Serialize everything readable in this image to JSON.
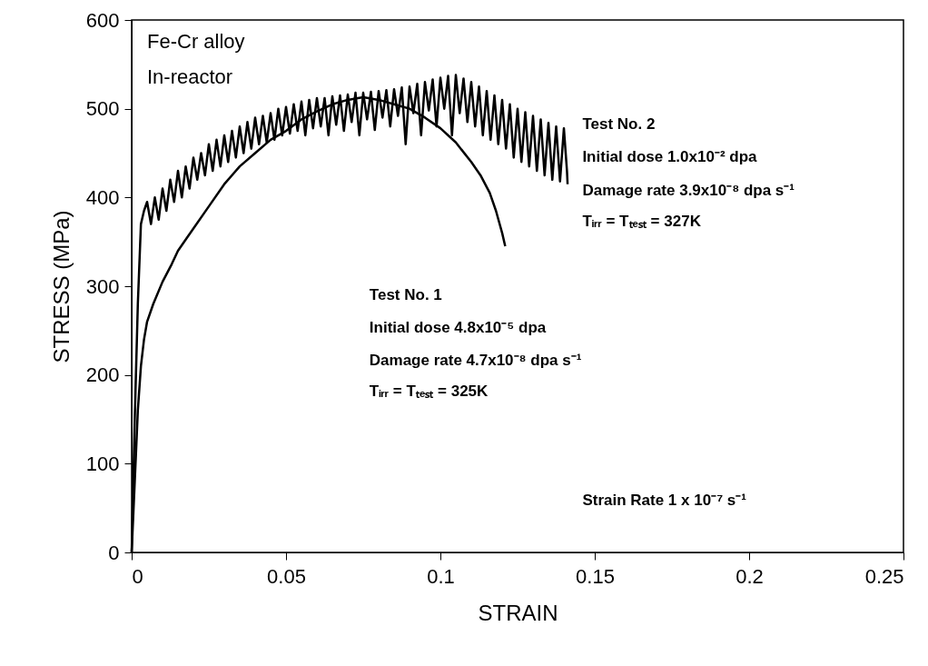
{
  "chart_data": {
    "type": "line",
    "xlabel": "STRAIN",
    "ylabel": "STRESS (MPa)",
    "xlim": [
      0,
      0.25
    ],
    "ylim": [
      0,
      600
    ],
    "xticks": [
      0,
      0.05,
      0.1,
      0.15,
      0.2,
      0.25
    ],
    "yticks": [
      0,
      100,
      200,
      300,
      400,
      500,
      600
    ],
    "grid": false,
    "marker": "none",
    "line_style": "solid",
    "series": [
      {
        "color": "#000000",
        "x": [
          0,
          0.001,
          0.002,
          0.003,
          0.004,
          0.005,
          0.007,
          0.01,
          0.013,
          0.015,
          0.018,
          0.02,
          0.025,
          0.03,
          0.035,
          0.04,
          0.045,
          0.05,
          0.055,
          0.06,
          0.065,
          0.07,
          0.075,
          0.08,
          0.085,
          0.09,
          0.095,
          0.1,
          0.105,
          0.11,
          0.113,
          0.116,
          0.118,
          0.12,
          0.121
        ],
        "values": [
          0,
          80,
          160,
          210,
          240,
          260,
          280,
          305,
          325,
          340,
          355,
          365,
          390,
          415,
          435,
          450,
          465,
          475,
          488,
          497,
          505,
          510,
          513,
          510,
          505,
          500,
          490,
          478,
          462,
          440,
          425,
          405,
          385,
          360,
          345
        ]
      },
      {
        "color": "#000000",
        "x": [
          0,
          0.001,
          0.002,
          0.003,
          0.004,
          0.005,
          0.00625,
          0.0075,
          0.00875,
          0.01,
          0.01125,
          0.0125,
          0.01375,
          0.015,
          0.01625,
          0.0175,
          0.01875,
          0.02,
          0.02125,
          0.0225,
          0.02375,
          0.025,
          0.02625,
          0.0275,
          0.02875,
          0.03,
          0.03125,
          0.0325,
          0.03375,
          0.035,
          0.03625,
          0.0375,
          0.03875,
          0.04,
          0.04125,
          0.0425,
          0.04375,
          0.045,
          0.04625,
          0.0475,
          0.04875,
          0.05,
          0.05125,
          0.0525,
          0.05375,
          0.055,
          0.05625,
          0.0575,
          0.05875,
          0.06,
          0.06125,
          0.0625,
          0.06375,
          0.065,
          0.06625,
          0.0675,
          0.06875,
          0.07,
          0.07125,
          0.0725,
          0.07375,
          0.075,
          0.07625,
          0.0775,
          0.07875,
          0.08,
          0.08125,
          0.0825,
          0.08375,
          0.085,
          0.08625,
          0.0875,
          0.08875,
          0.09,
          0.09125,
          0.0925,
          0.09375,
          0.095,
          0.09625,
          0.0975,
          0.09875,
          0.1,
          0.10125,
          0.1025,
          0.10375,
          0.105,
          0.10625,
          0.1075,
          0.10875,
          0.11,
          0.11125,
          0.1125,
          0.11375,
          0.115,
          0.11625,
          0.1175,
          0.11875,
          0.12,
          0.12125,
          0.1225,
          0.12375,
          0.125,
          0.12625,
          0.1275,
          0.12875,
          0.13,
          0.13125,
          0.1325,
          0.13375,
          0.135,
          0.13625,
          0.1375,
          0.13875,
          0.14,
          0.141,
          0.1412
        ],
        "values": [
          0,
          150,
          280,
          370,
          385,
          395,
          370,
          400,
          375,
          410,
          385,
          420,
          395,
          430,
          400,
          435,
          410,
          445,
          420,
          450,
          425,
          460,
          430,
          465,
          435,
          470,
          440,
          475,
          445,
          480,
          450,
          485,
          455,
          490,
          460,
          492,
          462,
          495,
          465,
          500,
          470,
          502,
          472,
          505,
          475,
          508,
          470,
          510,
          478,
          512,
          480,
          512,
          470,
          514,
          482,
          515,
          475,
          516,
          485,
          518,
          470,
          518,
          488,
          519,
          476,
          520,
          490,
          521,
          480,
          522,
          492,
          524,
          460,
          525,
          495,
          528,
          470,
          530,
          498,
          533,
          480,
          535,
          500,
          537,
          470,
          538,
          495,
          534,
          485,
          530,
          480,
          525,
          470,
          520,
          465,
          515,
          460,
          510,
          455,
          505,
          445,
          500,
          440,
          496,
          435,
          492,
          430,
          488,
          425,
          484,
          420,
          480,
          418,
          478,
          430,
          415
        ]
      }
    ],
    "annotations": [
      "Fe-Cr alloy",
      "In-reactor",
      "Test No. 2",
      "Initial dose 1.0x10⁻² dpa",
      "Damage rate 3.9x10⁻⁸ dpa s⁻¹",
      "Tᵢᵣᵣ = Tₜₑₛₜ = 327K",
      "Test No. 1",
      "Initial dose 4.8x10⁻⁵ dpa",
      "Damage rate 4.7x10⁻⁸ dpa s⁻¹",
      "Tᵢᵣᵣ = Tₜₑₛₜ = 325K",
      "Strain Rate 1 x 10⁻⁷ s⁻¹"
    ]
  }
}
